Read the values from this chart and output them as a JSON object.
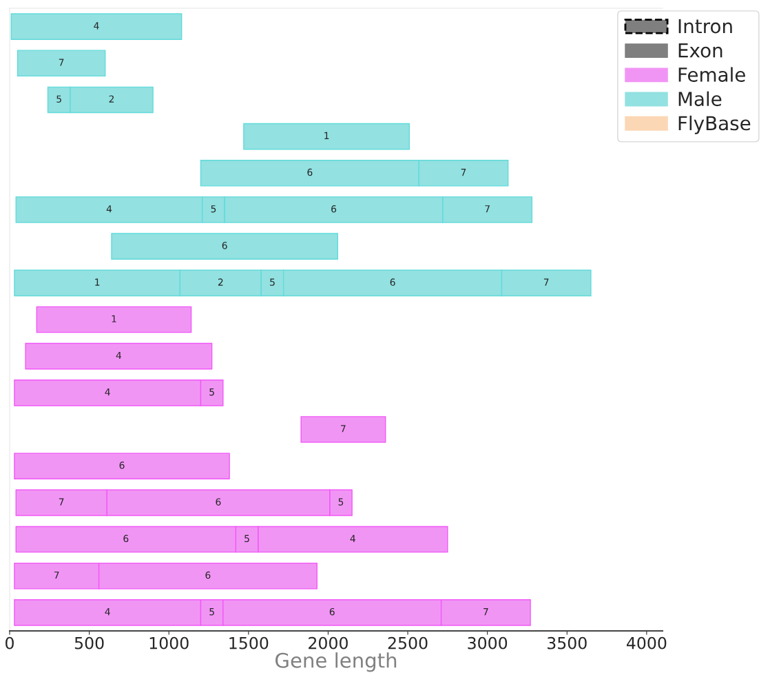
{
  "chart_data": {
    "type": "bar",
    "orientation": "horizontal",
    "xlabel": "Gene length",
    "categories": [
      null,
      null,
      null,
      null,
      null,
      null,
      null,
      null,
      null,
      null,
      null,
      null,
      null,
      null,
      null,
      null,
      null
    ],
    "series": [
      {
        "name": "Intron",
        "color": "#7f7f7f",
        "line_style": "dashed",
        "values": [
          null,
          null,
          null,
          null,
          null,
          null,
          null,
          null,
          null,
          null,
          null,
          null,
          null,
          null,
          null,
          null,
          null
        ]
      },
      {
        "name": "Exon",
        "color": "#7f7f7f",
        "values": [
          null,
          null,
          null,
          null,
          null,
          null,
          null,
          null,
          null,
          null,
          null,
          null,
          null,
          null,
          null,
          null,
          null
        ]
      },
      {
        "name": "Female",
        "color": "#f195f5",
        "values": [
          null,
          null,
          null,
          null,
          null,
          null,
          null,
          null,
          null,
          null,
          null,
          null,
          null,
          null,
          null,
          null,
          null
        ]
      },
      {
        "name": "Male",
        "color": "#93e1e1",
        "values": [
          null,
          null,
          null,
          null,
          null,
          null,
          null,
          null,
          null,
          null,
          null,
          null,
          null,
          null,
          null,
          null,
          null
        ]
      },
      {
        "name": "FlyBase",
        "color": "#fcd7b5",
        "values": [
          null,
          null,
          null,
          null,
          null,
          null,
          null,
          null,
          null,
          null,
          null,
          null,
          null,
          null,
          null,
          null,
          null
        ]
      },
      {
        "name": "1",
        "colors": [
          "#93e1e1",
          "#93e1e1",
          "#93e1e1",
          "#93e1e1",
          "#93e1e1",
          "#93e1e1",
          "#93e1e1",
          "#93e1e1",
          "#f195f5",
          "#f195f5",
          "#f195f5",
          "#f195f5",
          "#f195f5",
          "#f195f5",
          "#f195f5",
          "#f195f5",
          "#f195f5"
        ],
        "base": [
          null,
          null,
          null,
          1470,
          null,
          null,
          null,
          30,
          170,
          null,
          null,
          null,
          null,
          null,
          null,
          null,
          null
        ],
        "values": [
          null,
          null,
          null,
          1040,
          null,
          null,
          null,
          1040,
          970,
          null,
          null,
          null,
          null,
          null,
          null,
          null,
          null
        ]
      },
      {
        "name": "2",
        "colors": [
          "#93e1e1",
          "#93e1e1",
          "#93e1e1",
          "#93e1e1",
          "#93e1e1",
          "#93e1e1",
          "#93e1e1",
          "#93e1e1",
          "#f195f5",
          "#f195f5",
          "#f195f5",
          "#f195f5",
          "#f195f5",
          "#f195f5",
          "#f195f5",
          "#f195f5",
          "#f195f5"
        ],
        "base": [
          null,
          null,
          380,
          null,
          null,
          null,
          null,
          1070,
          null,
          null,
          null,
          null,
          null,
          null,
          null,
          null,
          null
        ],
        "values": [
          null,
          null,
          520,
          null,
          null,
          null,
          null,
          510,
          null,
          null,
          null,
          null,
          null,
          null,
          null,
          null,
          null
        ]
      },
      {
        "name": "4",
        "colors": [
          "#93e1e1",
          "#93e1e1",
          "#93e1e1",
          "#93e1e1",
          "#93e1e1",
          "#93e1e1",
          "#93e1e1",
          "#93e1e1",
          "#f195f5",
          "#f195f5",
          "#f195f5",
          "#f195f5",
          "#f195f5",
          "#f195f5",
          "#f195f5",
          "#f195f5",
          "#f195f5"
        ],
        "base": [
          10,
          null,
          null,
          null,
          null,
          40,
          null,
          null,
          null,
          100,
          30,
          null,
          null,
          null,
          1560,
          null,
          30
        ],
        "values": [
          1070,
          null,
          null,
          null,
          null,
          1170,
          null,
          null,
          null,
          1170,
          1170,
          null,
          null,
          null,
          1190,
          null,
          1170
        ]
      },
      {
        "name": "5",
        "colors": [
          "#93e1e1",
          "#93e1e1",
          "#93e1e1",
          "#93e1e1",
          "#93e1e1",
          "#93e1e1",
          "#93e1e1",
          "#93e1e1",
          "#f195f5",
          "#f195f5",
          "#f195f5",
          "#f195f5",
          "#f195f5",
          "#f195f5",
          "#f195f5",
          "#f195f5",
          "#f195f5"
        ],
        "base": [
          null,
          null,
          240,
          null,
          null,
          1210,
          null,
          1580,
          null,
          null,
          1200,
          null,
          null,
          2010,
          1420,
          null,
          1200
        ],
        "values": [
          null,
          null,
          140,
          null,
          null,
          140,
          null,
          140,
          null,
          null,
          140,
          null,
          null,
          140,
          140,
          null,
          140
        ]
      },
      {
        "name": "6",
        "colors": [
          "#93e1e1",
          "#93e1e1",
          "#93e1e1",
          "#93e1e1",
          "#93e1e1",
          "#93e1e1",
          "#93e1e1",
          "#93e1e1",
          "#f195f5",
          "#f195f5",
          "#f195f5",
          "#f195f5",
          "#f195f5",
          "#f195f5",
          "#f195f5",
          "#f195f5",
          "#f195f5"
        ],
        "base": [
          null,
          null,
          null,
          null,
          1200,
          1350,
          640,
          1720,
          null,
          null,
          null,
          null,
          30,
          610,
          40,
          560,
          1340
        ],
        "values": [
          null,
          null,
          null,
          null,
          1370,
          1370,
          1420,
          1370,
          null,
          null,
          null,
          null,
          1350,
          1400,
          1380,
          1370,
          1370
        ]
      },
      {
        "name": "7",
        "colors": [
          "#93e1e1",
          "#93e1e1",
          "#93e1e1",
          "#93e1e1",
          "#93e1e1",
          "#93e1e1",
          "#93e1e1",
          "#93e1e1",
          "#f195f5",
          "#f195f5",
          "#f195f5",
          "#f195f5",
          "#f195f5",
          "#f195f5",
          "#f195f5",
          "#f195f5",
          "#f195f5"
        ],
        "base": [
          null,
          50,
          null,
          null,
          2570,
          2720,
          null,
          3090,
          null,
          null,
          null,
          1830,
          null,
          40,
          null,
          30,
          2710
        ],
        "values": [
          null,
          550,
          null,
          null,
          560,
          560,
          null,
          560,
          null,
          null,
          null,
          530,
          null,
          570,
          null,
          530,
          560
        ]
      }
    ],
    "xlim": [
      0,
      4100
    ],
    "xticks": [
      0,
      500,
      1000,
      1500,
      2000,
      2500,
      3000,
      3500,
      4000
    ],
    "tick_labels": "x",
    "grid": false,
    "legend": "top right"
  }
}
